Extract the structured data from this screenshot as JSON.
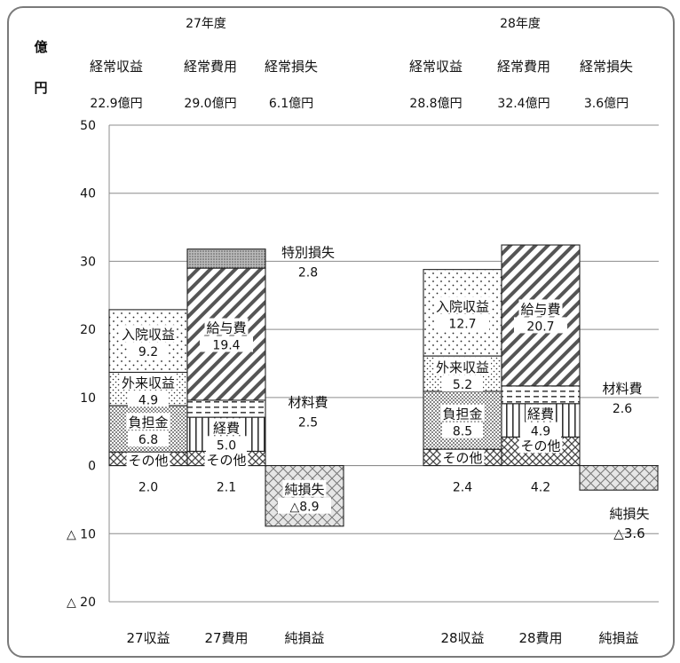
{
  "chart_data": {
    "type": "bar",
    "ylabel_lines": [
      "億",
      "円"
    ],
    "ylim": [
      -20,
      50
    ],
    "y_ticks": [
      {
        "value": 50,
        "label": "50"
      },
      {
        "value": 40,
        "label": "40"
      },
      {
        "value": 30,
        "label": "30"
      },
      {
        "value": 20,
        "label": "20"
      },
      {
        "value": 10,
        "label": "10"
      },
      {
        "value": 0,
        "label": "0"
      },
      {
        "value": -10,
        "label": "△ 10"
      },
      {
        "value": -20,
        "label": "△ 20"
      }
    ],
    "grid": true,
    "categories": [
      "27収益",
      "27費用",
      "純損益",
      "28収益",
      "28費用",
      "純損益"
    ],
    "years": [
      {
        "title": "27年度",
        "summary_labels": [
          "経常収益",
          "経常費用",
          "経常損失"
        ],
        "summary_values": [
          "22.9億円",
          "29.0億円",
          "6.1億円"
        ]
      },
      {
        "title": "28年度",
        "summary_labels": [
          "経常収益",
          "経常費用",
          "経常損失"
        ],
        "summary_values": [
          "28.8億円",
          "32.4億円",
          "3.6億円"
        ]
      }
    ],
    "bars": [
      {
        "category": "27収益",
        "segments": [
          {
            "name": "その他",
            "value": 2.0,
            "value_text": "2.0",
            "pattern": "diag-cross",
            "label_pos": "below"
          },
          {
            "name": "負担金",
            "value": 6.8,
            "value_text": "6.8",
            "pattern": "dots-dense",
            "label_pos": "inside"
          },
          {
            "name": "外来収益",
            "value": 4.9,
            "value_text": "4.9",
            "pattern": "dots-mid",
            "label_pos": "inside"
          },
          {
            "name": "入院収益",
            "value": 9.2,
            "value_text": "9.2",
            "pattern": "dots-sparse",
            "label_pos": "inside"
          }
        ]
      },
      {
        "category": "27費用",
        "segments": [
          {
            "name": "その他",
            "value": 2.1,
            "value_text": "2.1",
            "pattern": "diag-cross",
            "label_pos": "below"
          },
          {
            "name": "経費",
            "value": 5.0,
            "value_text": "5.0",
            "pattern": "vertical",
            "label_pos": "inside"
          },
          {
            "name": "材料費",
            "value": 2.5,
            "value_text": "2.5",
            "pattern": "dashes",
            "label_pos": "right"
          },
          {
            "name": "給与費",
            "value": 19.4,
            "value_text": "19.4",
            "pattern": "diagonal",
            "label_pos": "inside"
          },
          {
            "name": "特別損失",
            "value": 2.8,
            "value_text": "2.8",
            "pattern": "fine-dots",
            "label_pos": "right"
          }
        ]
      },
      {
        "category": "純損益",
        "segments": [
          {
            "name": "純損失",
            "value": -8.9,
            "value_text": "△8.9",
            "pattern": "crosshatch",
            "label_pos": "inside"
          }
        ]
      },
      {
        "category": "28収益",
        "segments": [
          {
            "name": "その他",
            "value": 2.4,
            "value_text": "2.4",
            "pattern": "diag-cross",
            "label_pos": "below"
          },
          {
            "name": "負担金",
            "value": 8.5,
            "value_text": "8.5",
            "pattern": "dots-dense",
            "label_pos": "inside"
          },
          {
            "name": "外来収益",
            "value": 5.2,
            "value_text": "5.2",
            "pattern": "dots-mid",
            "label_pos": "inside"
          },
          {
            "name": "入院収益",
            "value": 12.7,
            "value_text": "12.7",
            "pattern": "dots-sparse",
            "label_pos": "inside"
          }
        ]
      },
      {
        "category": "28費用",
        "segments": [
          {
            "name": "その他",
            "value": 4.2,
            "value_text": "4.2",
            "pattern": "diag-cross",
            "label_pos": "below"
          },
          {
            "name": "経費",
            "value": 4.9,
            "value_text": "4.9",
            "pattern": "vertical",
            "label_pos": "inside"
          },
          {
            "name": "材料費",
            "value": 2.6,
            "value_text": "2.6",
            "pattern": "dashes",
            "label_pos": "right"
          },
          {
            "name": "給与費",
            "value": 20.7,
            "value_text": "20.7",
            "pattern": "diagonal",
            "label_pos": "inside"
          }
        ]
      },
      {
        "category": "純損益",
        "segments": [
          {
            "name": "純損失",
            "value": -3.6,
            "value_text": "△3.6",
            "pattern": "crosshatch",
            "label_pos": "below"
          }
        ]
      }
    ],
    "connectors": [
      {
        "from_bar": 0,
        "to_bar": 1,
        "levels": [
          22.9
        ]
      },
      {
        "from_bar": 1,
        "to_bar": 2,
        "levels": [
          31.8,
          29.0,
          9.6
        ]
      },
      {
        "from_bar": 3,
        "to_bar": 4,
        "levels": [
          28.8
        ]
      },
      {
        "from_bar": 4,
        "to_bar": 5,
        "levels": [
          11.7
        ]
      }
    ]
  }
}
